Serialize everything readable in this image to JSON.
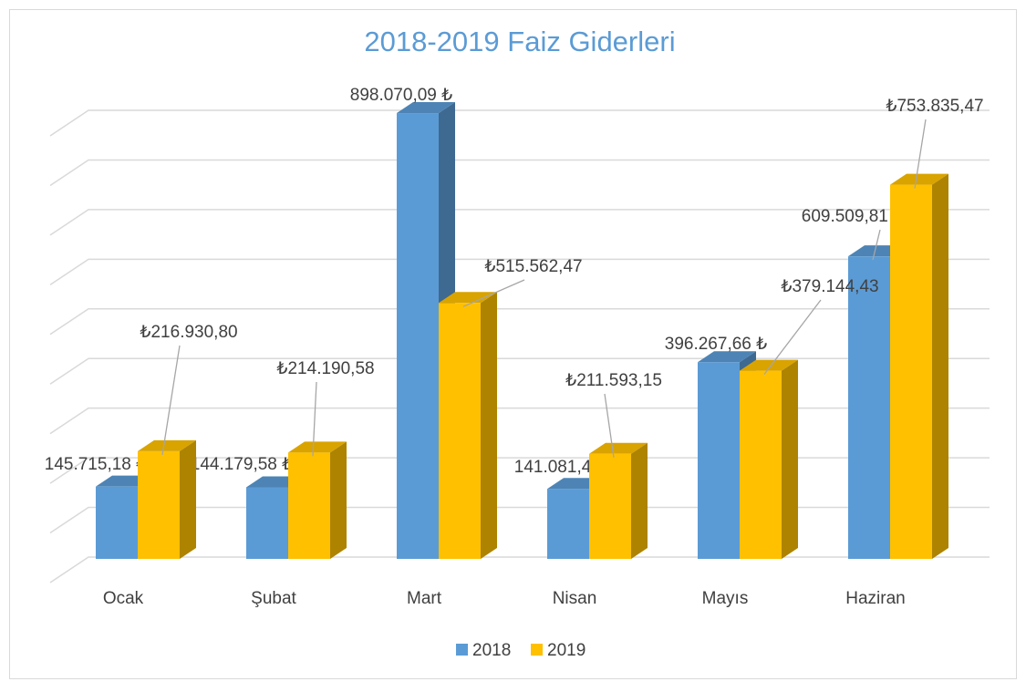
{
  "chart_data": {
    "type": "bar3d",
    "title": "2018-2019 Faiz Giderleri",
    "categories": [
      "Ocak",
      "Şubat",
      "Mart",
      "Nisan",
      "Mayıs",
      "Haziran"
    ],
    "series": [
      {
        "name": "2018",
        "color": "#5b9bd5",
        "values": [
          145715.18,
          144179.58,
          898070.09,
          141081.47,
          396267.66,
          609509.81
        ],
        "value_labels": [
          "145.715,18 ₺",
          "144.179,58 ₺",
          "898.070,09 ₺",
          "141.081,47 ₺",
          "396.267,66 ₺",
          "609.509,81 ₺"
        ]
      },
      {
        "name": "2019",
        "color": "#ffc000",
        "values": [
          216930.8,
          214190.58,
          515562.47,
          211593.15,
          379144.43,
          753835.47
        ],
        "value_labels": [
          "₺216.930,80",
          "₺214.190,58",
          "₺515.562,47",
          "₺211.593,15",
          "₺379.144,43",
          "₺753.835,47"
        ]
      }
    ],
    "ylim": [
      0,
      900000
    ],
    "yticks": [
      0,
      100000,
      200000,
      300000,
      400000,
      500000,
      600000,
      700000,
      800000,
      900000
    ],
    "grid": true,
    "legend": "bottom"
  }
}
